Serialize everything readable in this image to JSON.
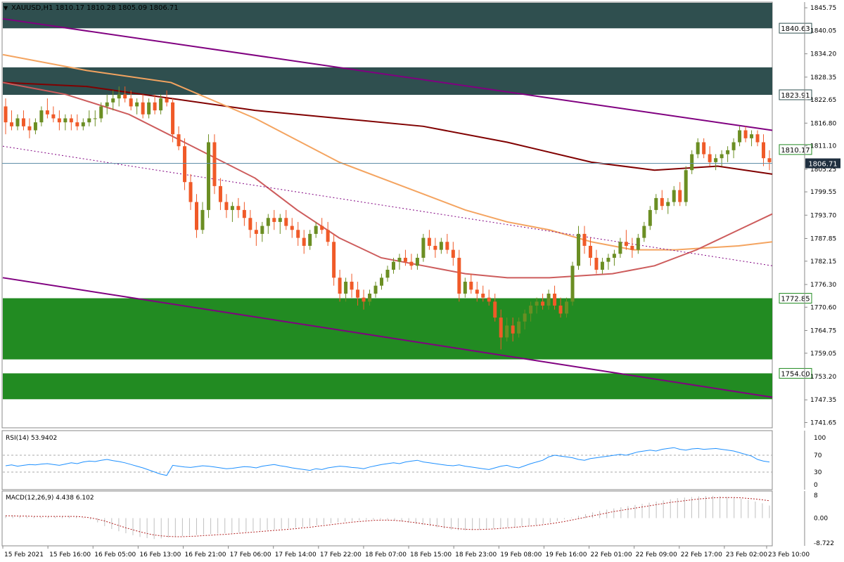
{
  "header": {
    "symbol": "XAUUSD,H1",
    "ohlc": "1810.17 1810.28 1805.09 1806.71"
  },
  "chart_data": {
    "type": "candlestick",
    "y_axis": {
      "ticks": [
        "1845.75",
        "1840.05",
        "1834.20",
        "1828.35",
        "1822.65",
        "1816.80",
        "1811.10",
        "1805.25",
        "1799.55",
        "1793.70",
        "1787.85",
        "1782.15",
        "1776.30",
        "1770.60",
        "1764.75",
        "1759.05",
        "1753.20",
        "1747.35",
        "1741.65"
      ],
      "ylim": [
        1740.5,
        1847.0
      ]
    },
    "x_axis": {
      "labels": [
        "15 Feb 2021",
        "15 Feb 16:00",
        "16 Feb 05:00",
        "16 Feb 13:00",
        "16 Feb 21:00",
        "17 Feb 06:00",
        "17 Feb 14:00",
        "17 Feb 22:00",
        "18 Feb 07:00",
        "18 Feb 15:00",
        "18 Feb 23:00",
        "19 Feb 08:00",
        "19 Feb 16:00",
        "22 Feb 01:00",
        "22 Feb 09:00",
        "22 Feb 17:00",
        "23 Feb 02:00",
        "23 Feb 10:00"
      ]
    },
    "zones": [
      {
        "name": "resistance-zone-upper",
        "from": 1840.6,
        "to": 1848.0,
        "color": "#2f4f4f"
      },
      {
        "name": "resistance-zone-lower",
        "from": 1823.9,
        "to": 1830.8,
        "color": "#2f4f4f"
      },
      {
        "name": "support-zone-upper",
        "from": 1757.5,
        "to": 1772.85,
        "color": "#228b22"
      },
      {
        "name": "support-zone-lower",
        "from": 1747.5,
        "to": 1754.0,
        "color": "#228b22"
      }
    ],
    "level_labels": [
      {
        "value": 1840.63,
        "text": "1840.63",
        "color": "#2f4f4f"
      },
      {
        "value": 1823.91,
        "text": "1823.91",
        "color": "#2f4f4f"
      },
      {
        "value": 1810.17,
        "text": "1810.17",
        "color": "#228b22"
      },
      {
        "value": 1772.85,
        "text": "1772.85",
        "color": "#228b22"
      },
      {
        "value": 1754.0,
        "text": "1754.00",
        "color": "#228b22"
      }
    ],
    "current_price": {
      "value": 1806.71,
      "text": "1806.71"
    },
    "trendlines": [
      {
        "name": "channel-upper",
        "from": [
          0,
          1843.0
        ],
        "to": [
          183,
          1815.0
        ],
        "color": "#800080",
        "style": "solid"
      },
      {
        "name": "channel-lower",
        "from": [
          0,
          1778.0
        ],
        "to": [
          183,
          1748.0
        ],
        "color": "#800080",
        "style": "solid"
      },
      {
        "name": "channel-mid",
        "from": [
          0,
          1811.0
        ],
        "to": [
          183,
          1781.0
        ],
        "color": "#800080",
        "style": "dotted"
      }
    ],
    "moving_averages": [
      {
        "name": "ma-slow",
        "color": "#800000",
        "points": [
          [
            0,
            1827
          ],
          [
            20,
            1826
          ],
          [
            40,
            1823
          ],
          [
            60,
            1820
          ],
          [
            80,
            1818
          ],
          [
            100,
            1816
          ],
          [
            120,
            1812
          ],
          [
            140,
            1807
          ],
          [
            155,
            1805
          ],
          [
            170,
            1806
          ],
          [
            183,
            1804
          ]
        ]
      },
      {
        "name": "ma-mid",
        "color": "#f4a460",
        "points": [
          [
            0,
            1834
          ],
          [
            20,
            1830
          ],
          [
            40,
            1827
          ],
          [
            60,
            1818
          ],
          [
            80,
            1807
          ],
          [
            90,
            1803
          ],
          [
            100,
            1799
          ],
          [
            110,
            1795
          ],
          [
            120,
            1792
          ],
          [
            130,
            1790
          ],
          [
            140,
            1787
          ],
          [
            150,
            1785
          ],
          [
            160,
            1785
          ],
          [
            175,
            1786
          ],
          [
            183,
            1787
          ]
        ]
      },
      {
        "name": "ma-fast",
        "color": "#cd5c5c",
        "points": [
          [
            0,
            1827
          ],
          [
            15,
            1824
          ],
          [
            30,
            1819
          ],
          [
            45,
            1811
          ],
          [
            60,
            1803
          ],
          [
            70,
            1795
          ],
          [
            80,
            1788
          ],
          [
            90,
            1783
          ],
          [
            100,
            1781
          ],
          [
            110,
            1779
          ],
          [
            120,
            1778
          ],
          [
            130,
            1778
          ],
          [
            145,
            1779
          ],
          [
            155,
            1781
          ],
          [
            165,
            1785
          ],
          [
            175,
            1790
          ],
          [
            183,
            1794
          ]
        ]
      }
    ],
    "candles": [
      [
        1821,
        1823,
        1814,
        1817
      ],
      [
        1817,
        1820,
        1815,
        1816
      ],
      [
        1816,
        1819,
        1815,
        1818
      ],
      [
        1818,
        1820,
        1815,
        1816
      ],
      [
        1816,
        1818,
        1813,
        1815
      ],
      [
        1815,
        1818,
        1814,
        1817
      ],
      [
        1817,
        1821,
        1816,
        1820
      ],
      [
        1820,
        1823,
        1818,
        1819
      ],
      [
        1819,
        1821,
        1817,
        1818
      ],
      [
        1818,
        1820,
        1815,
        1817
      ],
      [
        1817,
        1819,
        1815,
        1818
      ],
      [
        1818,
        1819,
        1815,
        1817
      ],
      [
        1817,
        1819,
        1815,
        1816
      ],
      [
        1816,
        1818,
        1815,
        1817
      ],
      [
        1817,
        1820,
        1816,
        1818
      ],
      [
        1818,
        1820,
        1816,
        1818
      ],
      [
        1818,
        1822,
        1817,
        1821
      ],
      [
        1821,
        1824,
        1819,
        1822
      ],
      [
        1822,
        1825,
        1820,
        1823
      ],
      [
        1823,
        1826,
        1821,
        1824
      ],
      [
        1824,
        1826,
        1822,
        1823
      ],
      [
        1823,
        1825,
        1820,
        1821
      ],
      [
        1821,
        1823,
        1819,
        1822
      ],
      [
        1822,
        1824,
        1818,
        1819
      ],
      [
        1819,
        1823,
        1818,
        1822
      ],
      [
        1822,
        1824,
        1819,
        1820
      ],
      [
        1820,
        1824,
        1819,
        1823
      ],
      [
        1823,
        1825,
        1821,
        1822
      ],
      [
        1822,
        1823,
        1812,
        1814
      ],
      [
        1814,
        1816,
        1810,
        1811
      ],
      [
        1811,
        1813,
        1800,
        1802
      ],
      [
        1802,
        1804,
        1795,
        1797
      ],
      [
        1797,
        1799,
        1788,
        1790
      ],
      [
        1790,
        1797,
        1789,
        1795
      ],
      [
        1795,
        1814,
        1793,
        1812
      ],
      [
        1812,
        1814,
        1799,
        1801
      ],
      [
        1801,
        1803,
        1795,
        1797
      ],
      [
        1797,
        1799,
        1793,
        1795
      ],
      [
        1795,
        1797,
        1792,
        1796
      ],
      [
        1796,
        1798,
        1793,
        1795
      ],
      [
        1795,
        1797,
        1791,
        1793
      ],
      [
        1793,
        1795,
        1788,
        1790
      ],
      [
        1790,
        1792,
        1786,
        1789
      ],
      [
        1789,
        1792,
        1787,
        1791
      ],
      [
        1791,
        1794,
        1789,
        1793
      ],
      [
        1793,
        1795,
        1790,
        1792
      ],
      [
        1792,
        1794,
        1789,
        1793
      ],
      [
        1793,
        1795,
        1790,
        1791
      ],
      [
        1791,
        1793,
        1788,
        1790
      ],
      [
        1790,
        1792,
        1786,
        1788
      ],
      [
        1788,
        1790,
        1784,
        1786
      ],
      [
        1786,
        1790,
        1785,
        1789
      ],
      [
        1789,
        1792,
        1788,
        1791
      ],
      [
        1791,
        1793,
        1789,
        1790
      ],
      [
        1790,
        1792,
        1786,
        1787
      ],
      [
        1787,
        1789,
        1776,
        1778
      ],
      [
        1778,
        1780,
        1772,
        1774
      ],
      [
        1774,
        1778,
        1772,
        1777
      ],
      [
        1777,
        1779,
        1773,
        1775
      ],
      [
        1775,
        1777,
        1771,
        1773
      ],
      [
        1773,
        1775,
        1770,
        1772
      ],
      [
        1772,
        1775,
        1771,
        1774
      ],
      [
        1774,
        1777,
        1773,
        1776
      ],
      [
        1776,
        1779,
        1775,
        1778
      ],
      [
        1778,
        1781,
        1777,
        1780
      ],
      [
        1780,
        1783,
        1779,
        1782
      ],
      [
        1782,
        1784,
        1780,
        1783
      ],
      [
        1783,
        1785,
        1781,
        1782
      ],
      [
        1782,
        1784,
        1780,
        1781
      ],
      [
        1781,
        1784,
        1780,
        1783
      ],
      [
        1783,
        1789,
        1782,
        1788
      ],
      [
        1788,
        1790,
        1785,
        1786
      ],
      [
        1786,
        1788,
        1783,
        1785
      ],
      [
        1785,
        1788,
        1784,
        1787
      ],
      [
        1787,
        1789,
        1784,
        1785
      ],
      [
        1785,
        1787,
        1781,
        1783
      ],
      [
        1783,
        1785,
        1772,
        1774
      ],
      [
        1774,
        1778,
        1773,
        1777
      ],
      [
        1777,
        1779,
        1774,
        1775
      ],
      [
        1775,
        1777,
        1772,
        1774
      ],
      [
        1774,
        1776,
        1772,
        1773
      ],
      [
        1773,
        1775,
        1771,
        1772
      ],
      [
        1772,
        1774,
        1767,
        1768
      ],
      [
        1768,
        1770,
        1760,
        1763
      ],
      [
        1763,
        1768,
        1762,
        1766
      ],
      [
        1766,
        1768,
        1762,
        1764
      ],
      [
        1764,
        1768,
        1763,
        1767
      ],
      [
        1767,
        1770,
        1765,
        1769
      ],
      [
        1769,
        1772,
        1767,
        1771
      ],
      [
        1771,
        1773,
        1769,
        1772
      ],
      [
        1772,
        1774,
        1770,
        1771
      ],
      [
        1771,
        1775,
        1770,
        1774
      ],
      [
        1774,
        1776,
        1770,
        1771
      ],
      [
        1771,
        1773,
        1768,
        1769
      ],
      [
        1769,
        1773,
        1768,
        1772
      ],
      [
        1772,
        1782,
        1771,
        1781
      ],
      [
        1781,
        1791,
        1780,
        1789
      ],
      [
        1789,
        1791,
        1784,
        1786
      ],
      [
        1786,
        1788,
        1781,
        1783
      ],
      [
        1783,
        1785,
        1779,
        1780
      ],
      [
        1780,
        1783,
        1779,
        1782
      ],
      [
        1782,
        1784,
        1780,
        1783
      ],
      [
        1783,
        1785,
        1781,
        1784
      ],
      [
        1784,
        1788,
        1783,
        1787
      ],
      [
        1787,
        1790,
        1785,
        1786
      ],
      [
        1786,
        1788,
        1783,
        1785
      ],
      [
        1785,
        1789,
        1784,
        1788
      ],
      [
        1788,
        1792,
        1787,
        1791
      ],
      [
        1791,
        1796,
        1790,
        1795
      ],
      [
        1795,
        1799,
        1794,
        1798
      ],
      [
        1798,
        1800,
        1795,
        1796
      ],
      [
        1796,
        1798,
        1794,
        1797
      ],
      [
        1797,
        1801,
        1796,
        1800
      ],
      [
        1800,
        1802,
        1796,
        1797
      ],
      [
        1797,
        1806,
        1796,
        1805
      ],
      [
        1805,
        1810,
        1804,
        1809
      ],
      [
        1809,
        1813,
        1808,
        1812
      ],
      [
        1812,
        1813,
        1808,
        1809
      ],
      [
        1809,
        1811,
        1806,
        1807
      ],
      [
        1807,
        1809,
        1805,
        1808
      ],
      [
        1808,
        1810,
        1806,
        1809
      ],
      [
        1809,
        1811,
        1807,
        1810
      ],
      [
        1810,
        1813,
        1808,
        1812
      ],
      [
        1812,
        1816,
        1811,
        1815
      ],
      [
        1815,
        1816,
        1812,
        1813
      ],
      [
        1813,
        1815,
        1811,
        1814
      ],
      [
        1814,
        1815,
        1811,
        1812
      ],
      [
        1812,
        1814,
        1806,
        1808
      ],
      [
        1808,
        1810,
        1805,
        1807
      ]
    ]
  },
  "rsi": {
    "label": "RSI(14) 53.9402",
    "ticks": [
      "70",
      "30",
      "0"
    ],
    "top_tick": "100",
    "levels": [
      70,
      30
    ],
    "values": [
      45,
      47,
      44,
      46,
      48,
      47,
      49,
      50,
      48,
      46,
      49,
      52,
      50,
      54,
      56,
      55,
      58,
      60,
      57,
      55,
      52,
      48,
      44,
      40,
      35,
      30,
      25,
      22,
      46,
      44,
      42,
      41,
      43,
      45,
      44,
      42,
      40,
      38,
      39,
      41,
      43,
      42,
      40,
      44,
      46,
      48,
      45,
      43,
      40,
      38,
      36,
      34,
      38,
      36,
      40,
      42,
      44,
      43,
      41,
      40,
      38,
      42,
      45,
      48,
      50,
      52,
      50,
      54,
      56,
      58,
      54,
      52,
      50,
      48,
      46,
      45,
      47,
      44,
      42,
      40,
      38,
      36,
      40,
      44,
      46,
      42,
      40,
      45,
      50,
      54,
      58,
      66,
      70,
      68,
      66,
      64,
      60,
      58,
      62,
      64,
      66,
      68,
      70,
      72,
      70,
      74,
      78,
      80,
      82,
      80,
      84,
      86,
      88,
      84,
      82,
      85,
      86,
      84,
      85,
      86,
      84,
      82,
      80,
      76,
      72,
      68,
      60,
      56,
      54
    ]
  },
  "macd": {
    "label": "MACD(12,26,9) 4.438 6.102",
    "ticks": [
      "8",
      "0.00",
      "-8.722"
    ],
    "ylim": [
      -8.722,
      8.0
    ],
    "histogram": [
      1,
      1,
      0.8,
      0.6,
      0.5,
      0.4,
      0.5,
      0.6,
      0.7,
      0.8,
      0.6,
      0.2,
      -0.5,
      -1.5,
      -2.8,
      -3.8,
      -4.6,
      -5.3,
      -6.0,
      -6.6,
      -7.0,
      -7.3,
      -7.1,
      -6.8,
      -6.5,
      -6.3,
      -6.1,
      -5.9,
      -5.7,
      -5.6,
      -5.4,
      -5.3,
      -5.2,
      -5.0,
      -4.8,
      -4.6,
      -4.4,
      -4.2,
      -4.0,
      -3.8,
      -3.6,
      -3.4,
      -3.1,
      -2.8,
      -2.5,
      -2.2,
      -1.8,
      -1.5,
      -1.2,
      -1.0,
      -0.8,
      -0.6,
      -0.5,
      -0.4,
      -0.5,
      -0.8,
      -1.2,
      -1.6,
      -2.0,
      -2.4,
      -2.8,
      -3.2,
      -3.6,
      -4.0,
      -4.2,
      -4.3,
      -4.2,
      -4.0,
      -3.8,
      -3.6,
      -3.4,
      -3.2,
      -3.0,
      -2.8,
      -2.6,
      -2.4,
      -2.0,
      -1.6,
      -1.0,
      -0.4,
      0.2,
      0.8,
      1.4,
      2.0,
      2.5,
      3.0,
      3.4,
      3.8,
      4.2,
      4.6,
      5.0,
      5.4,
      5.8,
      6.2,
      6.6,
      7.0,
      7.2,
      7.4,
      7.6,
      7.7,
      7.8,
      7.6,
      7.4,
      7.1,
      6.8,
      6.4,
      5.8,
      5.2,
      4.4
    ],
    "signal": [
      0.8,
      0.8,
      0.7,
      0.7,
      0.6,
      0.6,
      0.6,
      0.6,
      0.6,
      0.6,
      0.6,
      0.4,
      0.1,
      -0.4,
      -1.0,
      -1.8,
      -2.6,
      -3.4,
      -4.1,
      -4.8,
      -5.4,
      -5.9,
      -6.2,
      -6.4,
      -6.5,
      -6.5,
      -6.4,
      -6.3,
      -6.1,
      -6.0,
      -5.8,
      -5.7,
      -5.5,
      -5.3,
      -5.1,
      -4.9,
      -4.7,
      -4.5,
      -4.3,
      -4.1,
      -3.9,
      -3.7,
      -3.4,
      -3.2,
      -2.9,
      -2.6,
      -2.3,
      -2.0,
      -1.7,
      -1.4,
      -1.2,
      -1.0,
      -0.8,
      -0.7,
      -0.7,
      -0.8,
      -1.0,
      -1.3,
      -1.6,
      -2.0,
      -2.3,
      -2.7,
      -3.1,
      -3.4,
      -3.7,
      -3.9,
      -4.0,
      -4.0,
      -3.9,
      -3.8,
      -3.6,
      -3.4,
      -3.2,
      -3.0,
      -2.8,
      -2.6,
      -2.3,
      -2.0,
      -1.6,
      -1.2,
      -0.7,
      -0.2,
      0.3,
      0.8,
      1.3,
      1.8,
      2.3,
      2.7,
      3.1,
      3.5,
      3.9,
      4.3,
      4.7,
      5.1,
      5.5,
      5.8,
      6.1,
      6.4,
      6.7,
      6.9,
      7.1,
      7.2,
      7.2,
      7.2,
      7.1,
      6.9,
      6.7,
      6.4,
      6.1
    ]
  },
  "colors": {
    "bull": "#6b8e23",
    "bear": "#f05a28",
    "rsi_line": "#1e90ff",
    "macd_hist": "#c0c0c0",
    "macd_signal": "#b22222"
  }
}
